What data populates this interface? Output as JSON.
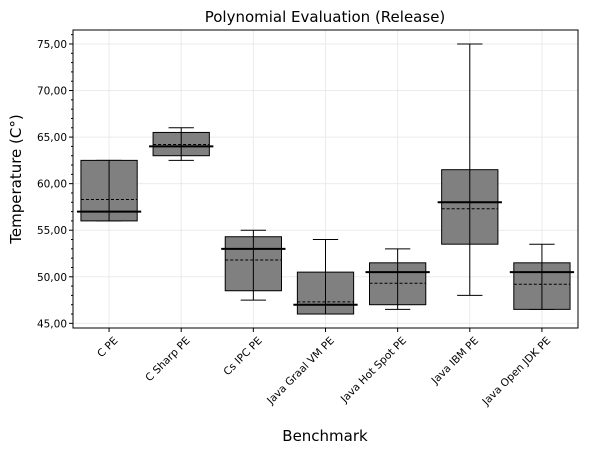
{
  "chart_data": {
    "type": "box",
    "title": "Polynomial Evaluation (Release)",
    "xlabel": "Benchmark",
    "ylabel": "Temperature (C°)",
    "ylim": [
      44.5,
      76.5
    ],
    "yticks": [
      45,
      50,
      55,
      60,
      65,
      70,
      75
    ],
    "ytick_labels": [
      "45,00",
      "50,00",
      "55,00",
      "60,00",
      "65,00",
      "70,00",
      "75,00"
    ],
    "grid": true,
    "categories": [
      "C PE",
      "C Sharp PE",
      "Cs IPC PE",
      "Java Graal VM PE",
      "Java Hot Spot PE",
      "Java IBM PE",
      "Java Open JDK PE"
    ],
    "boxes": [
      {
        "min": 56.0,
        "q1": 56.0,
        "median": 57.0,
        "mean": 58.3,
        "q3": 62.5,
        "max": 62.5
      },
      {
        "min": 62.5,
        "q1": 63.0,
        "median": 64.0,
        "mean": 64.2,
        "q3": 65.5,
        "max": 66.0
      },
      {
        "min": 47.5,
        "q1": 48.5,
        "median": 53.0,
        "mean": 51.8,
        "q3": 54.3,
        "max": 55.0
      },
      {
        "min": 46.0,
        "q1": 46.0,
        "median": 47.0,
        "mean": 47.3,
        "q3": 50.5,
        "max": 54.0
      },
      {
        "min": 46.5,
        "q1": 47.0,
        "median": 50.5,
        "mean": 49.3,
        "q3": 51.5,
        "max": 53.0
      },
      {
        "min": 48.0,
        "q1": 53.5,
        "median": 58.0,
        "mean": 57.3,
        "q3": 61.5,
        "max": 75.0
      },
      {
        "min": 46.5,
        "q1": 46.5,
        "median": 50.5,
        "mean": 49.2,
        "q3": 51.5,
        "max": 53.5
      }
    ]
  }
}
